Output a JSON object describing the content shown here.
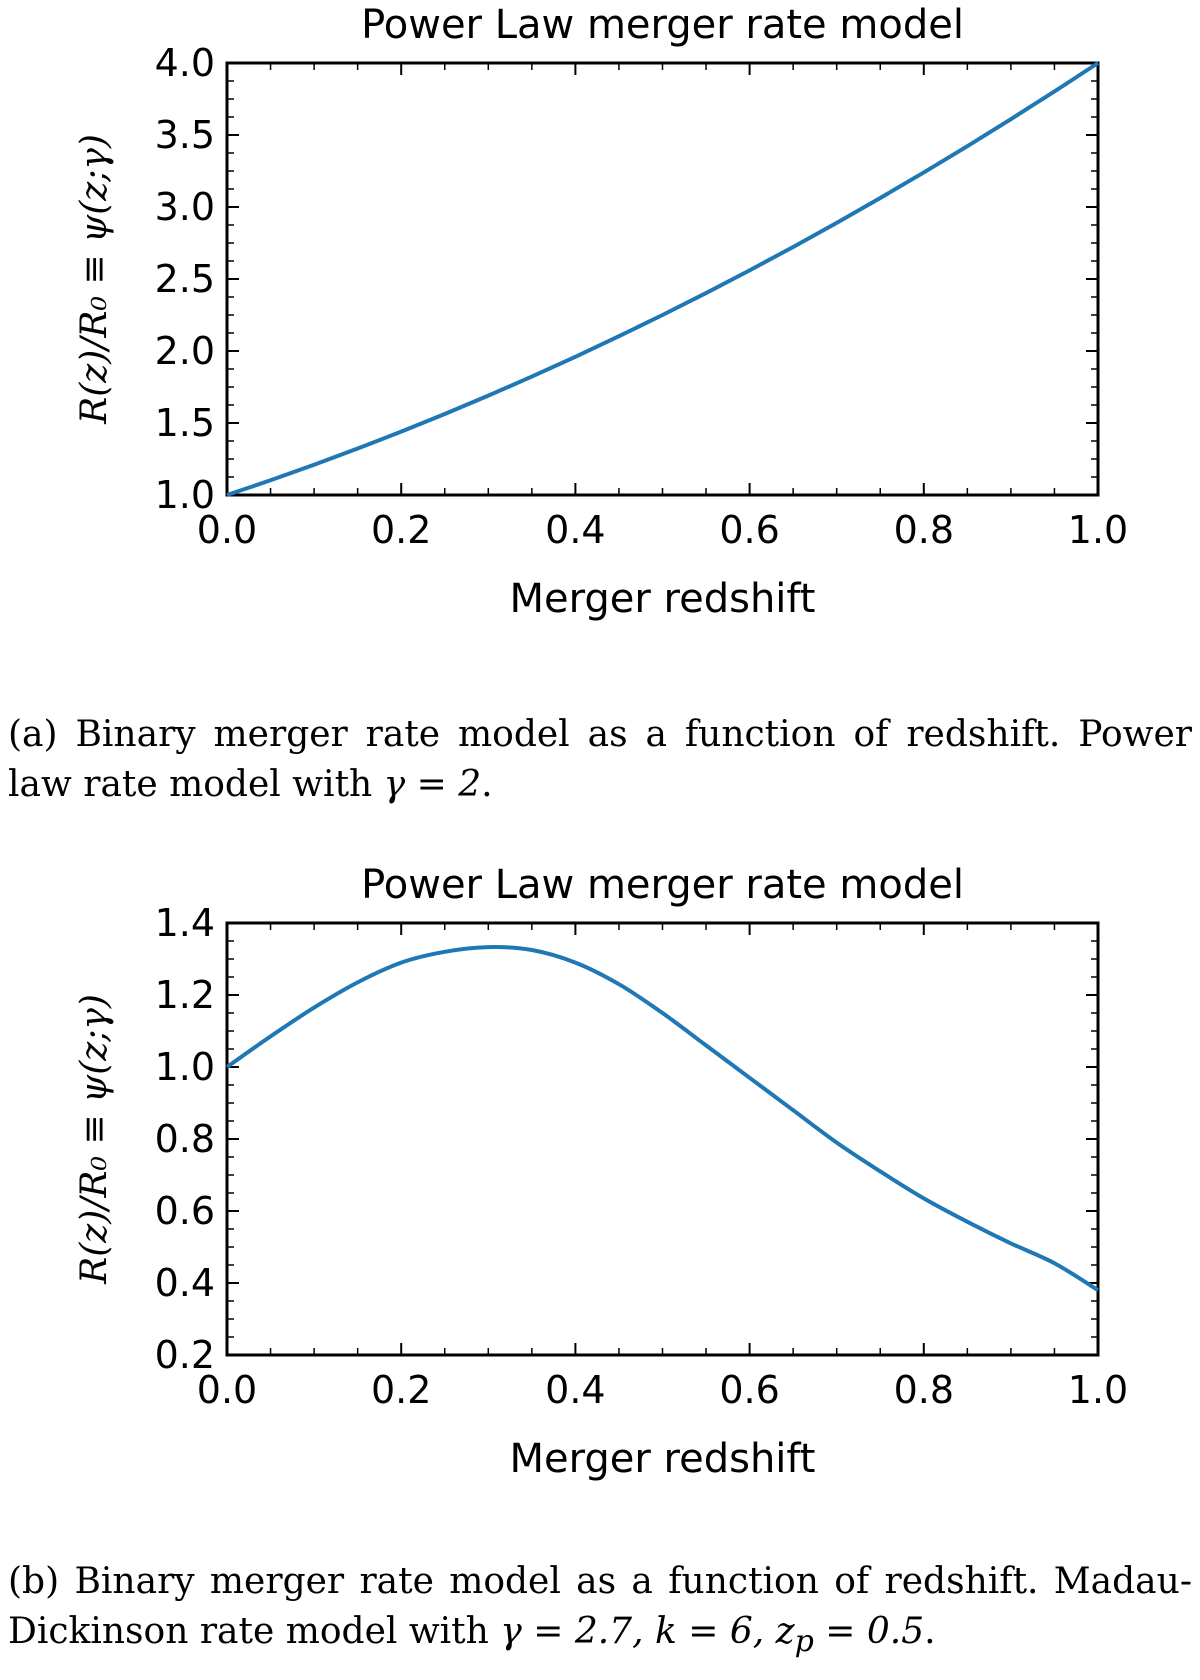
{
  "colors": {
    "line": "#1f77b4",
    "axes": "#000000"
  },
  "chart_data": [
    {
      "type": "line",
      "title": "Power Law merger rate model",
      "xlabel": "Merger redshift",
      "ylabel": "R(z)/R₀ ≡ ψ(z;γ)",
      "xlim": [
        0.0,
        1.0
      ],
      "ylim": [
        1.0,
        4.0
      ],
      "xticks": [
        "0.0",
        "0.2",
        "0.4",
        "0.6",
        "0.8",
        "1.0"
      ],
      "yticks": [
        "1.0",
        "1.5",
        "2.0",
        "2.5",
        "3.0",
        "3.5",
        "4.0"
      ],
      "grid": false,
      "series": [
        {
          "name": "Power law, γ = 2",
          "x": [
            0.0,
            0.05,
            0.1,
            0.15,
            0.2,
            0.25,
            0.3,
            0.35,
            0.4,
            0.45,
            0.5,
            0.55,
            0.6,
            0.65,
            0.7,
            0.75,
            0.8,
            0.85,
            0.9,
            0.95,
            1.0
          ],
          "y": [
            1.0,
            1.1025,
            1.21,
            1.3225,
            1.44,
            1.5625,
            1.69,
            1.8225,
            1.96,
            2.1025,
            2.25,
            2.4025,
            2.56,
            2.7225,
            2.89,
            3.0625,
            3.24,
            3.4225,
            3.61,
            3.8025,
            4.0
          ]
        }
      ]
    },
    {
      "type": "line",
      "title": "Power Law merger rate model",
      "xlabel": "Merger redshift",
      "ylabel": "R(z)/R₀ ≡ ψ(z;γ)",
      "xlim": [
        0.0,
        1.0
      ],
      "ylim": [
        0.2,
        1.4
      ],
      "xticks": [
        "0.0",
        "0.2",
        "0.4",
        "0.6",
        "0.8",
        "1.0"
      ],
      "yticks": [
        "0.2",
        "0.4",
        "0.6",
        "0.8",
        "1.0",
        "1.2",
        "1.4"
      ],
      "grid": false,
      "series": [
        {
          "name": "Madau-Dickinson, γ = 2.7, k = 6, z_p = 0.5",
          "x": [
            0.0,
            0.05,
            0.1,
            0.15,
            0.2,
            0.25,
            0.3,
            0.35,
            0.4,
            0.45,
            0.5,
            0.55,
            0.6,
            0.65,
            0.7,
            0.75,
            0.8,
            0.85,
            0.9,
            0.95,
            1.0
          ],
          "y": [
            1.0,
            1.085,
            1.165,
            1.235,
            1.29,
            1.32,
            1.333,
            1.325,
            1.29,
            1.23,
            1.15,
            1.06,
            0.97,
            0.88,
            0.79,
            0.71,
            0.635,
            0.57,
            0.51,
            0.455,
            0.38
          ]
        }
      ]
    }
  ],
  "captions": [
    {
      "prefix": "(a) Binary merger rate model as a function of redshift. Power law rate model with ",
      "math": "γ = 2",
      "suffix": "."
    },
    {
      "prefix": "(b) Binary merger rate model as a function of redshift. Madau-Dickinson rate model with ",
      "math": "γ = 2.7, k = 6, z",
      "math_sub": "p",
      "math_tail": " = 0.5",
      "suffix": "."
    }
  ]
}
